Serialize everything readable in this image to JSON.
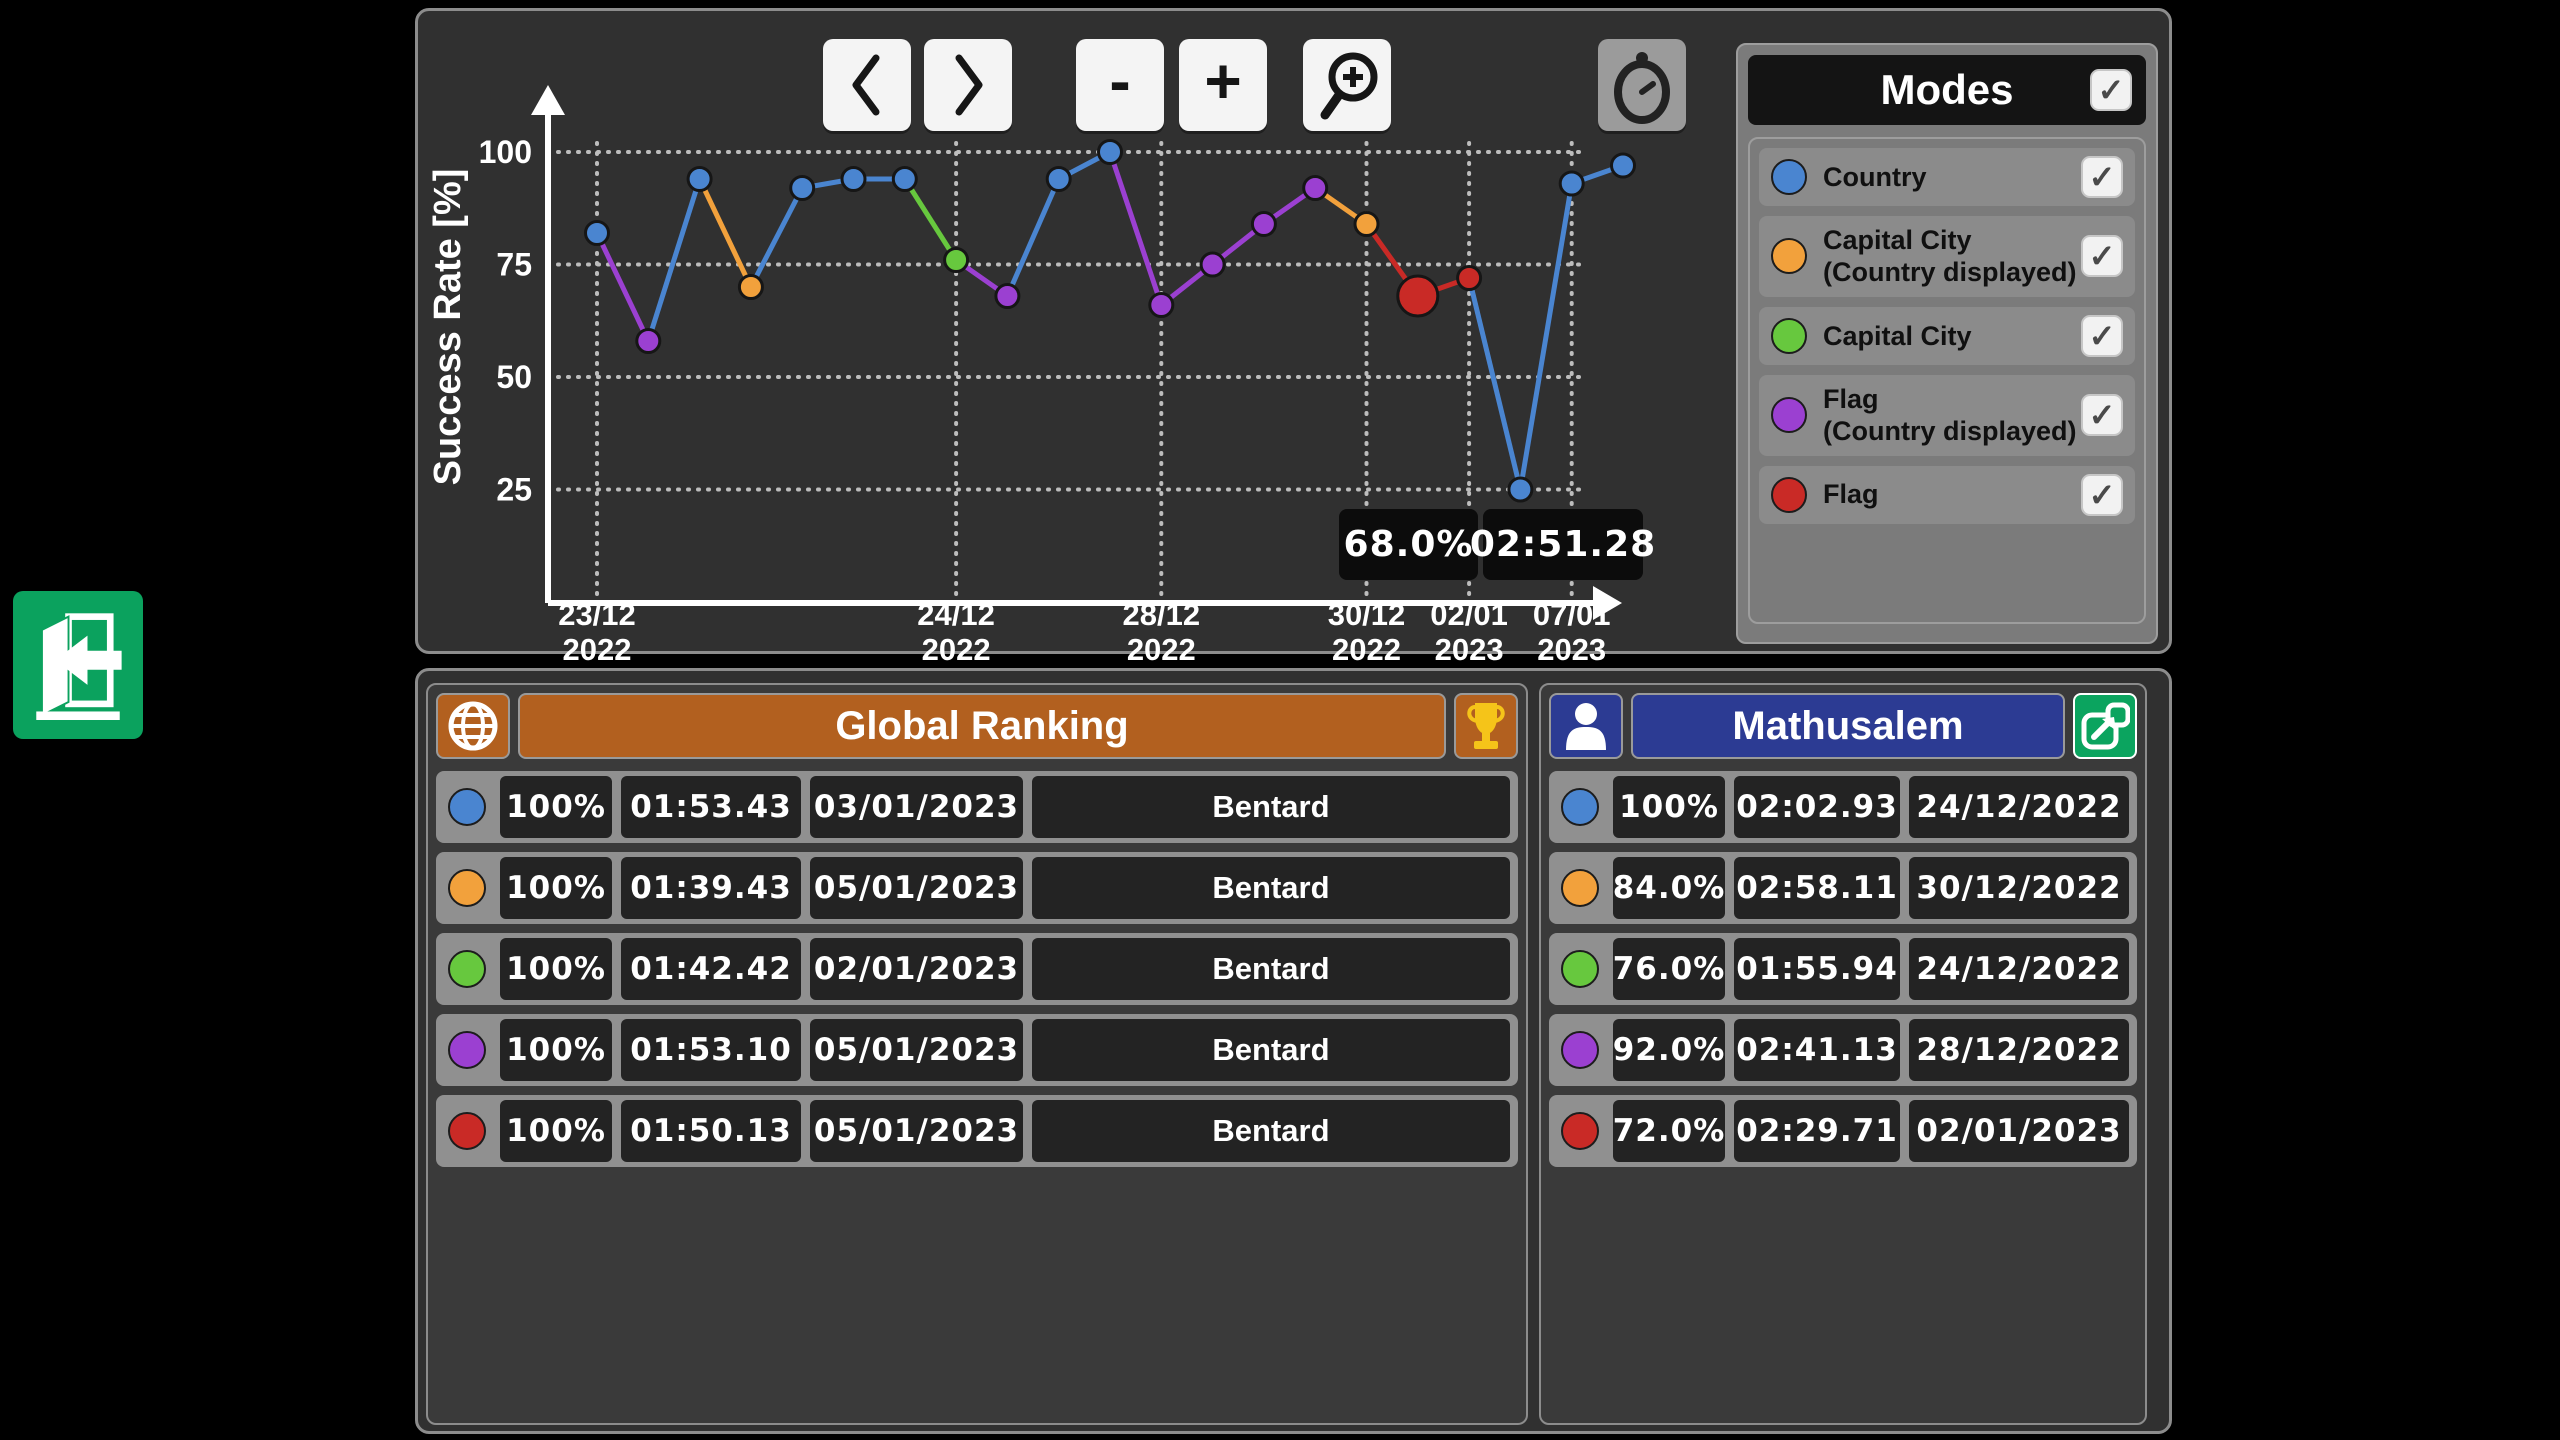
{
  "palette": {
    "blue": "#4a85d0",
    "orange": "#f2a13c",
    "green": "#67c83e",
    "purple": "#9b40d1",
    "red": "#c92a26"
  },
  "icons": {
    "check_glyph": "✓",
    "exit": "exit-door-icon",
    "back": "chevron-left-icon",
    "forward": "chevron-right-icon",
    "magnifier": "magnifier-plus-icon",
    "stopwatch": "stopwatch-icon",
    "globe": "globe-icon",
    "trophy": "trophy-icon",
    "person": "person-icon",
    "share": "external-link-icon"
  },
  "toolbar": {
    "zoom_out_label": "-",
    "zoom_in_label": "+"
  },
  "stats_badge": {
    "accuracy": "68.0%",
    "time": "02:51.28"
  },
  "modes": {
    "title": "Modes",
    "header_checked": true,
    "items": [
      {
        "color": "blue",
        "label": "Country",
        "checked": true
      },
      {
        "color": "orange",
        "label": "Capital City\n(Country displayed)",
        "checked": true
      },
      {
        "color": "green",
        "label": "Capital City",
        "checked": true
      },
      {
        "color": "purple",
        "label": "Flag\n(Country displayed)",
        "checked": true
      },
      {
        "color": "red",
        "label": "Flag",
        "checked": true
      }
    ]
  },
  "global_ranking": {
    "title": "Global Ranking",
    "rows": [
      {
        "color": "blue",
        "accuracy": "100%",
        "time": "01:53.43",
        "date": "03/01/2023",
        "player": "Bentard"
      },
      {
        "color": "orange",
        "accuracy": "100%",
        "time": "01:39.43",
        "date": "05/01/2023",
        "player": "Bentard"
      },
      {
        "color": "green",
        "accuracy": "100%",
        "time": "01:42.42",
        "date": "02/01/2023",
        "player": "Bentard"
      },
      {
        "color": "purple",
        "accuracy": "100%",
        "time": "01:53.10",
        "date": "05/01/2023",
        "player": "Bentard"
      },
      {
        "color": "red",
        "accuracy": "100%",
        "time": "01:50.13",
        "date": "05/01/2023",
        "player": "Bentard"
      }
    ]
  },
  "player_panel": {
    "title": "Mathusalem",
    "rows": [
      {
        "color": "blue",
        "accuracy": "100%",
        "time": "02:02.93",
        "date": "24/12/2022"
      },
      {
        "color": "orange",
        "accuracy": "84.0%",
        "time": "02:58.11",
        "date": "30/12/2022"
      },
      {
        "color": "green",
        "accuracy": "76.0%",
        "time": "01:55.94",
        "date": "24/12/2022"
      },
      {
        "color": "purple",
        "accuracy": "92.0%",
        "time": "02:41.13",
        "date": "28/12/2022"
      },
      {
        "color": "red",
        "accuracy": "72.0%",
        "time": "02:29.71",
        "date": "02/01/2023"
      }
    ]
  },
  "chart_data": {
    "type": "line",
    "title": "",
    "xlabel": "",
    "ylabel": "Success Rate [%]",
    "ylim": [
      0,
      100
    ],
    "grid": true,
    "legend_position": "right (Modes panel)",
    "y_ticks": [
      100,
      75,
      50,
      25
    ],
    "x_tick_indices": [
      1,
      8,
      12,
      16,
      18,
      20
    ],
    "x_tick_labels": [
      [
        "23/12",
        "2022"
      ],
      [
        "24/12",
        "2022"
      ],
      [
        "28/12",
        "2022"
      ],
      [
        "30/12",
        "2022"
      ],
      [
        "02/01",
        "2023"
      ],
      [
        "07/01",
        "2023"
      ]
    ],
    "selected_index": 17,
    "points": [
      {
        "i": 1,
        "value": 82,
        "mode": "Country",
        "color": "blue"
      },
      {
        "i": 2,
        "value": 58,
        "mode": "Flag (Country displayed)",
        "color": "purple"
      },
      {
        "i": 3,
        "value": 94,
        "mode": "Country",
        "color": "blue"
      },
      {
        "i": 4,
        "value": 70,
        "mode": "Capital City (Country displayed)",
        "color": "orange"
      },
      {
        "i": 5,
        "value": 92,
        "mode": "Country",
        "color": "blue"
      },
      {
        "i": 6,
        "value": 94,
        "mode": "Country",
        "color": "blue"
      },
      {
        "i": 7,
        "value": 94,
        "mode": "Country",
        "color": "blue"
      },
      {
        "i": 8,
        "value": 76,
        "mode": "Capital City",
        "color": "green"
      },
      {
        "i": 9,
        "value": 68,
        "mode": "Flag (Country displayed)",
        "color": "purple"
      },
      {
        "i": 10,
        "value": 94,
        "mode": "Country",
        "color": "blue"
      },
      {
        "i": 11,
        "value": 100,
        "mode": "Country",
        "color": "blue"
      },
      {
        "i": 12,
        "value": 66,
        "mode": "Flag (Country displayed)",
        "color": "purple"
      },
      {
        "i": 13,
        "value": 75,
        "mode": "Flag (Country displayed)",
        "color": "purple"
      },
      {
        "i": 14,
        "value": 84,
        "mode": "Flag (Country displayed)",
        "color": "purple"
      },
      {
        "i": 15,
        "value": 92,
        "mode": "Flag (Country displayed)",
        "color": "purple"
      },
      {
        "i": 16,
        "value": 84,
        "mode": "Capital City (Country displayed)",
        "color": "orange"
      },
      {
        "i": 17,
        "value": 68,
        "mode": "Flag",
        "color": "red",
        "selected": true
      },
      {
        "i": 18,
        "value": 72,
        "mode": "Flag",
        "color": "red"
      },
      {
        "i": 19,
        "value": 25,
        "mode": "Country",
        "color": "blue"
      },
      {
        "i": 20,
        "value": 93,
        "mode": "Country",
        "color": "blue"
      },
      {
        "i": 21,
        "value": 97,
        "mode": "Country",
        "color": "blue"
      }
    ]
  }
}
